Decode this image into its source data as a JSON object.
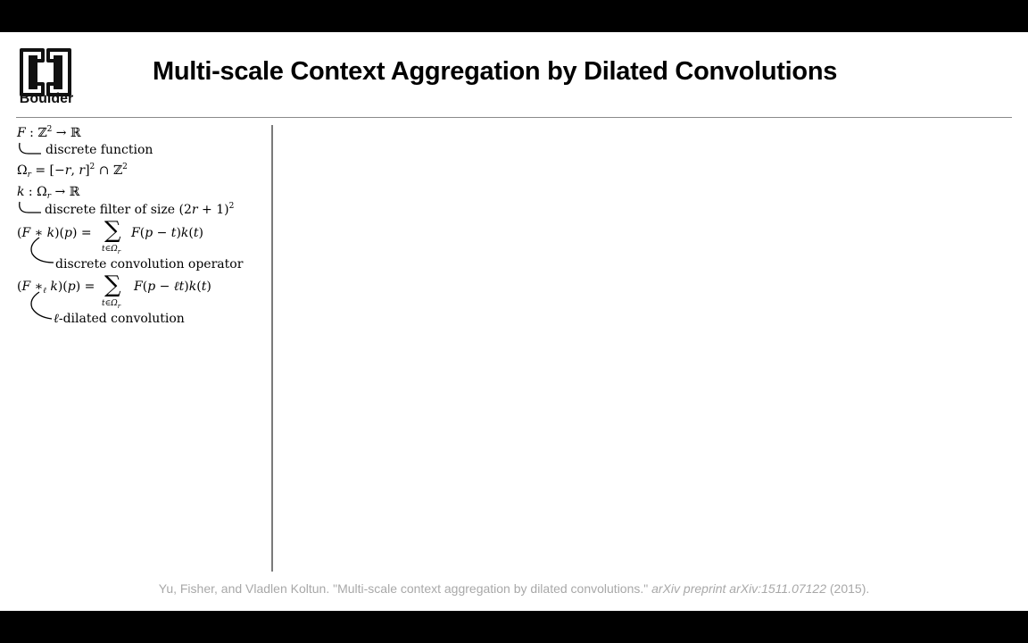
{
  "header": {
    "logo_text": "Boulder",
    "title": "Multi-scale Context Aggregation by Dilated Convolutions"
  },
  "notes": {
    "def_function_label": "discrete function",
    "def_filter_label": "discrete filter of size",
    "conv_label": "discrete convolution operator",
    "dilated_label": "-dilated convolution"
  },
  "citation": {
    "authors_title": "Yu, Fisher, and Vladlen Koltun. \"Multi-scale context aggregation by dilated convolutions.\"",
    "venue": "arXiv preprint arXiv:1511.07122",
    "year": "(2015)."
  }
}
